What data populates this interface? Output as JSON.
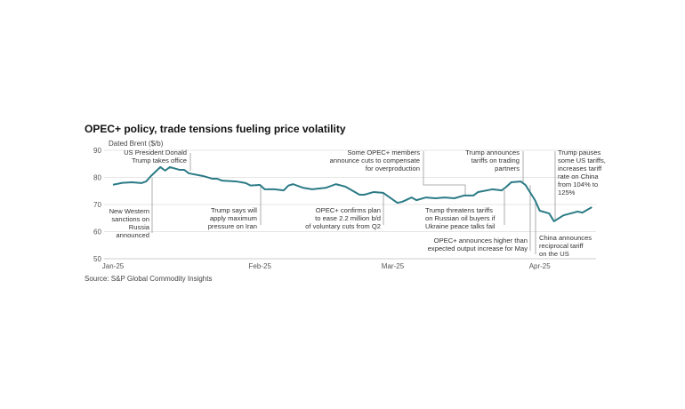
{
  "chart_data": {
    "type": "line",
    "title": "OPEC+ policy, trade tensions fueling price volatility",
    "ylabel": "Dated Brent ($/b)",
    "xlabel": "",
    "source": "Source: S&P Global Commodity Insights",
    "ylim": [
      50,
      90
    ],
    "yticks": [
      "90",
      "80",
      "70",
      "60",
      "50"
    ],
    "ytick_values": [
      90,
      80,
      70,
      60,
      50
    ],
    "xticks": [
      {
        "label": "Jan-25",
        "day": 1
      },
      {
        "label": "Feb-25",
        "day": 32
      },
      {
        "label": "Mar-25",
        "day": 60
      },
      {
        "label": "Apr-25",
        "day": 91
      }
    ],
    "grid": true,
    "color": "#2b7b86",
    "series": [
      {
        "name": "Dated Brent",
        "x": [
          1,
          3,
          5,
          7,
          8,
          9,
          11,
          12,
          13,
          15,
          16,
          17,
          20,
          22,
          23,
          24,
          27,
          29,
          30,
          32,
          33,
          35,
          37,
          38,
          39,
          41,
          43,
          46,
          48,
          50,
          51,
          53,
          54,
          56,
          58,
          61,
          62,
          64,
          65,
          67,
          69,
          71,
          73,
          75,
          77,
          78,
          81,
          83,
          84,
          85,
          87,
          88,
          90,
          91,
          93,
          94,
          96,
          99,
          100,
          102
        ],
        "values": [
          77.3,
          78,
          78.2,
          77.9,
          78.5,
          80.5,
          83.8,
          82.5,
          83.8,
          82.8,
          82.8,
          81.5,
          80.5,
          79.5,
          79.5,
          78.8,
          78.5,
          77.9,
          77,
          77.2,
          75.6,
          75.6,
          75.2,
          77,
          77.5,
          76.2,
          75.6,
          76.2,
          77.5,
          76.6,
          75.6,
          73.6,
          73.6,
          74.6,
          74.3,
          70.6,
          71,
          72.6,
          71.6,
          72.6,
          72.3,
          72.6,
          72.3,
          73.3,
          73.3,
          74.6,
          75.6,
          75.2,
          76.6,
          78.2,
          78.5,
          77.2,
          71.6,
          67.7,
          66.7,
          63.8,
          66,
          67.4,
          67,
          69
        ]
      }
    ],
    "annotations": [
      "US President Donald\nTrump takes office",
      "New Western\nsanctions on\nRussia\nannounced",
      "Trump says will\napply maximum\npressure on Iran",
      "OPEC+ confirms plan\nto ease 2.2 million b/d\nof voluntary cuts from Q2",
      "Some OPEC+ members\nannounce cuts to compensate\nfor overproduction",
      "Trump threatens tariffs\non Russian oil buyers if\nUkraine peace talks fail",
      "Trump announces\ntariffs on trading\npartners",
      "OPEC+ announces higher than\nexpected output increase for May",
      "China announces\nreciprocal tariff\non the US",
      "Trump pauses\nsome US tariffs,\nincreases tariff\nrate on China\nfrom 104% to\n125%"
    ]
  }
}
